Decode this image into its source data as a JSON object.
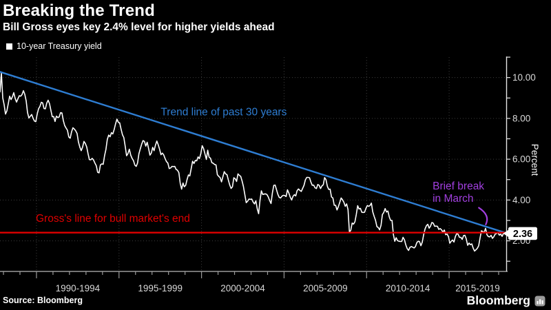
{
  "header": {
    "title": "Breaking the Trend",
    "subtitle": "Bill Gross eyes key 2.4% level for higher yields ahead"
  },
  "legend": {
    "label": "10-year Treasury yield",
    "marker_color": "#ffffff"
  },
  "footer": {
    "source": "Source: Bloomberg",
    "brand": "Bloomberg"
  },
  "colors": {
    "background": "#000000",
    "series": "#ffffff",
    "trend": "#2e7dd2",
    "threshold": "#e00000",
    "annotation_purple": "#a13fdf",
    "grid": "#3e3e3e",
    "axis_bottom": "#9a9a9a",
    "axis_right": "#e8e8e8",
    "tick_text": "#d9d9d9",
    "callout_bg": "#ffffff",
    "callout_text": "#000000"
  },
  "chart_data": {
    "type": "line",
    "title": "Breaking the Trend",
    "xlabel": "",
    "ylabel": "Percent",
    "x_range": [
      1987.79,
      2018.46
    ],
    "y_range": [
      0.5,
      11.0
    ],
    "x_axis": {
      "major_ticks": [
        1990,
        1995,
        2000,
        2005,
        2010,
        2015
      ],
      "minor_tick_start": 1988,
      "minor_tick_end": 2018,
      "bucket_labels": [
        "1990-1994",
        "1995-1999",
        "2000-2004",
        "2005-2009",
        "2010-2014",
        "2015-2019"
      ]
    },
    "y_axis": {
      "label": "Percent",
      "major_ticks": [
        2,
        4,
        6,
        8,
        10
      ],
      "major_tick_labels": [
        "2.00",
        "4.00",
        "6.00",
        "8.00",
        "10.00"
      ],
      "all_ticks": [
        1,
        2,
        3,
        4,
        5,
        6,
        7,
        8,
        9,
        10,
        11
      ],
      "grid_at": [
        2,
        4,
        6,
        8,
        10
      ]
    },
    "trend_line": {
      "label": "Trend line of past 30 years",
      "from": {
        "x": 1987.79,
        "y": 10.28
      },
      "to": {
        "x": 2018.46,
        "y": 2.38
      },
      "label_pos": {
        "x": 1997.53,
        "y": 8.15
      }
    },
    "threshold_line": {
      "label": "Gross's line for bull market's end",
      "value": 2.4,
      "label_pos": {
        "x": 1989.96,
        "y": 2.93
      }
    },
    "break_annotation": {
      "text_lines": [
        "Brief break",
        "in March"
      ],
      "text_pos": {
        "x": 2014.0,
        "y": 4.52
      },
      "line_gap_y": 0.61,
      "arrow": {
        "from": {
          "x": 2016.8,
          "y": 3.62
        },
        "ctrl": {
          "x": 2017.5,
          "y": 3.25
        },
        "to": {
          "x": 2017.22,
          "y": 2.8
        }
      }
    },
    "last_point_label": "2.36",
    "series": [
      {
        "name": "10-year Treasury yield",
        "start_year": 1987.7917,
        "step_years": 0.0833333,
        "values": [
          9.3,
          10.23,
          9.0,
          8.67,
          8.21,
          8.37,
          8.72,
          9.09,
          8.92,
          9.06,
          9.26,
          8.98,
          8.8,
          8.96,
          9.11,
          9.09,
          9.17,
          9.36,
          9.18,
          8.86,
          8.28,
          8.02,
          8.11,
          8.19,
          8.01,
          7.87,
          7.84,
          8.21,
          8.47,
          8.59,
          8.79,
          8.76,
          8.48,
          8.47,
          8.75,
          8.89,
          8.72,
          8.39,
          8.08,
          8.09,
          7.85,
          8.11,
          8.04,
          8.07,
          8.28,
          8.27,
          7.9,
          7.65,
          7.53,
          7.42,
          7.09,
          7.03,
          7.34,
          7.54,
          7.48,
          7.39,
          7.26,
          6.84,
          6.59,
          6.42,
          6.59,
          6.87,
          6.77,
          6.6,
          6.26,
          5.98,
          5.97,
          6.04,
          5.96,
          5.81,
          5.68,
          5.36,
          5.33,
          5.72,
          5.77,
          5.75,
          6.17,
          6.48,
          6.97,
          7.18,
          7.1,
          7.3,
          7.24,
          7.46,
          7.74,
          7.96,
          7.81,
          7.78,
          7.47,
          7.2,
          7.06,
          6.63,
          6.17,
          6.28,
          6.49,
          6.2,
          6.04,
          5.93,
          5.71,
          5.65,
          5.81,
          6.27,
          6.51,
          6.74,
          6.91,
          6.87,
          6.64,
          6.83,
          6.53,
          6.2,
          6.3,
          6.58,
          6.42,
          6.69,
          6.89,
          6.71,
          6.49,
          6.22,
          6.3,
          6.21,
          6.03,
          5.88,
          5.81,
          5.54,
          5.57,
          5.65,
          5.64,
          5.65,
          5.5,
          5.46,
          5.34,
          4.81,
          4.53,
          4.83,
          4.65,
          4.72,
          5.0,
          5.23,
          5.18,
          5.54,
          5.9,
          5.79,
          5.94,
          5.92,
          6.11,
          6.03,
          6.28,
          6.66,
          6.52,
          6.26,
          5.99,
          6.44,
          6.1,
          6.05,
          5.83,
          5.8,
          5.74,
          5.72,
          5.24,
          5.16,
          5.1,
          4.89,
          5.14,
          5.39,
          5.28,
          5.24,
          4.97,
          4.73,
          4.57,
          4.65,
          5.09,
          5.04,
          4.91,
          5.28,
          5.21,
          5.16,
          4.93,
          4.65,
          4.26,
          3.87,
          3.94,
          4.05,
          4.03,
          4.05,
          3.9,
          3.81,
          3.96,
          3.57,
          3.33,
          3.98,
          4.45,
          4.27,
          4.29,
          4.3,
          4.27,
          4.15,
          3.97,
          3.83,
          4.35,
          4.72,
          4.73,
          4.5,
          4.28,
          4.13,
          4.1,
          4.19,
          4.23,
          4.22,
          4.17,
          4.5,
          4.34,
          4.14,
          4.0,
          4.18,
          4.26,
          4.2,
          4.46,
          4.54,
          4.47,
          4.42,
          4.57,
          4.72,
          4.99,
          5.11,
          5.11,
          5.09,
          4.88,
          4.72,
          4.73,
          4.6,
          4.56,
          4.76,
          4.72,
          4.56,
          4.69,
          4.75,
          5.1,
          5.0,
          4.67,
          4.52,
          4.53,
          4.15,
          4.1,
          3.74,
          3.74,
          3.51,
          3.68,
          3.88,
          4.1,
          4.01,
          3.89,
          3.69,
          3.81,
          3.53,
          2.42,
          2.52,
          2.87,
          2.82,
          2.93,
          3.29,
          3.72,
          3.56,
          3.59,
          3.4,
          3.39,
          3.4,
          3.59,
          3.73,
          3.69,
          3.73,
          3.85,
          3.42,
          3.2,
          3.01,
          2.7,
          2.65,
          2.54,
          2.76,
          3.29,
          3.39,
          3.58,
          3.41,
          3.46,
          3.17,
          3.0,
          3.0,
          2.3,
          1.98,
          2.15,
          2.01,
          1.98,
          1.97,
          1.97,
          2.17,
          2.05,
          1.8,
          1.62,
          1.53,
          1.68,
          1.72,
          1.69,
          1.65,
          1.72,
          1.91,
          1.98,
          1.96,
          1.76,
          1.93,
          2.3,
          2.58,
          2.74,
          2.81,
          2.62,
          2.72,
          2.9,
          2.86,
          2.71,
          2.72,
          2.71,
          2.56,
          2.6,
          2.54,
          2.42,
          2.53,
          2.3,
          2.33,
          2.21,
          1.88,
          1.98,
          2.04,
          1.94,
          2.2,
          2.36,
          2.32,
          2.17,
          2.17,
          2.07,
          2.26,
          2.27,
          2.09,
          1.78,
          1.89,
          1.81,
          1.85,
          1.64,
          1.5,
          1.56,
          1.63,
          1.76,
          2.14,
          2.49,
          2.45,
          2.42,
          2.61,
          2.3,
          2.21,
          2.19,
          2.27,
          2.12,
          2.2,
          2.33,
          2.36,
          2.4,
          2.28,
          2.33,
          2.22,
          2.36
        ]
      }
    ]
  }
}
